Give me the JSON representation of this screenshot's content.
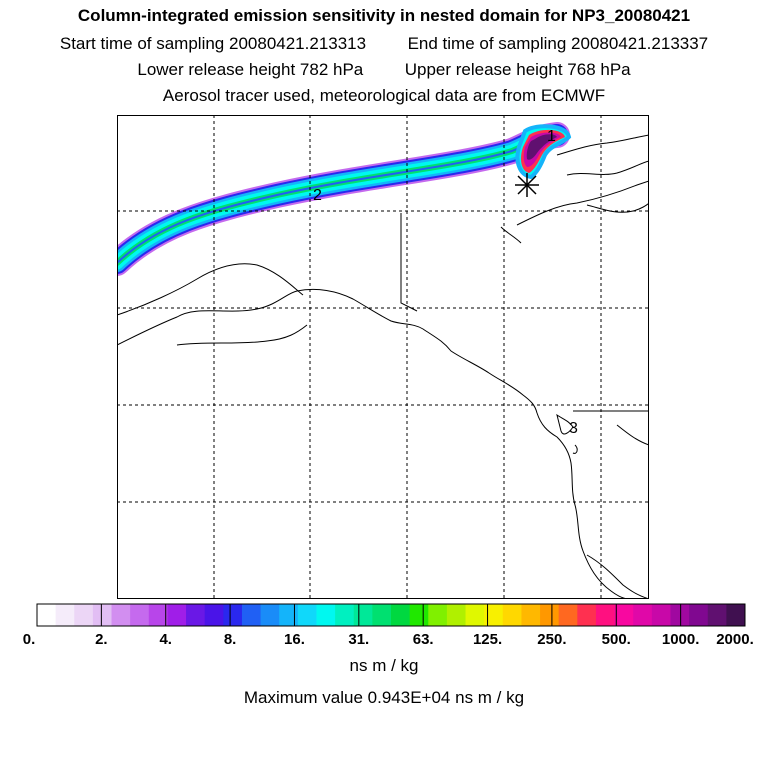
{
  "header": {
    "title": "Column-integrated emission sensitivity in nested domain for NP3_20080421",
    "start_label": "Start time of sampling",
    "start_value": "20080421.213313",
    "end_label": "End time of sampling",
    "end_value": "20080421.213337",
    "lower_label": "Lower release height",
    "lower_value": "782 hPa",
    "upper_label": "Upper release height",
    "upper_value": "768 hPa",
    "note": "Aerosol tracer used, meteorological data are from ECMWF"
  },
  "map": {
    "day_markers": [
      "1",
      "2",
      "3"
    ],
    "release_marker": "release-location-star"
  },
  "colorbar": {
    "colors": [
      "#ffffff",
      "#f5ecfa",
      "#ecd6f6",
      "#e2bef4",
      "#d28ef0",
      "#c56aee",
      "#b845ea",
      "#a01ee8",
      "#6a18e6",
      "#4a14e8",
      "#2a28ee",
      "#2060f4",
      "#1a8cf8",
      "#14b4fa",
      "#10d8fa",
      "#00f8f0",
      "#00f0c0",
      "#00e898",
      "#00e070",
      "#00d840",
      "#20e800",
      "#80f000",
      "#b0f000",
      "#e0f800",
      "#f8f000",
      "#ffd800",
      "#ffb800",
      "#ff9800",
      "#ff6820",
      "#ff3050",
      "#ff1080",
      "#f808a0",
      "#e008a8",
      "#c808a8",
      "#a008a0",
      "#800890",
      "#601070",
      "#401050"
    ],
    "ticks": [
      "0.",
      "2.",
      "4.",
      "8.",
      "16.",
      "31.",
      "63.",
      "125.",
      "250.",
      "500.",
      "1000.",
      "2000."
    ],
    "units": "ns m / kg"
  },
  "footer": {
    "max_label": "Maximum value",
    "max_value": "0.943E+04",
    "max_units": "ns m / kg"
  }
}
